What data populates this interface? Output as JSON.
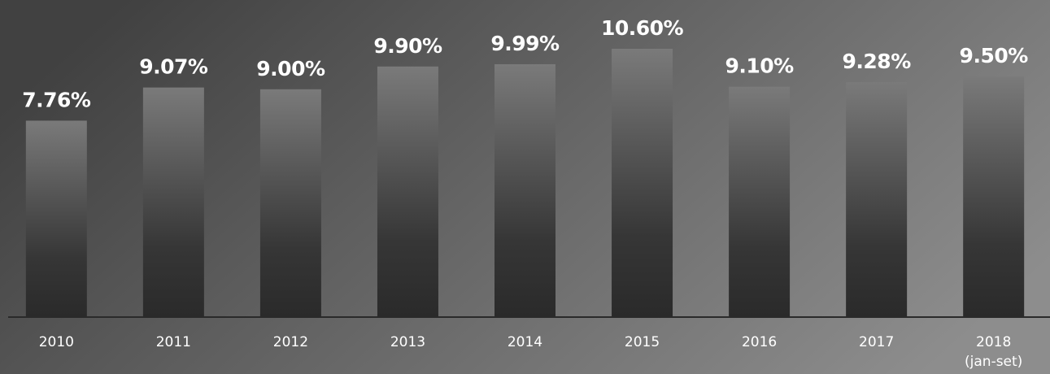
{
  "chart_data": {
    "type": "bar",
    "categories": [
      "2010",
      "2011",
      "2012",
      "2013",
      "2014",
      "2015",
      "2016",
      "2017",
      "2018\n(jan-set)"
    ],
    "values": [
      7.76,
      9.07,
      9.0,
      9.9,
      9.99,
      10.6,
      9.1,
      9.28,
      9.5
    ],
    "value_labels": [
      "7.76%",
      "9.07%",
      "9.00%",
      "9.90%",
      "9.99%",
      "10.60%",
      "9.10%",
      "9.28%",
      "9.50%"
    ]
  }
}
